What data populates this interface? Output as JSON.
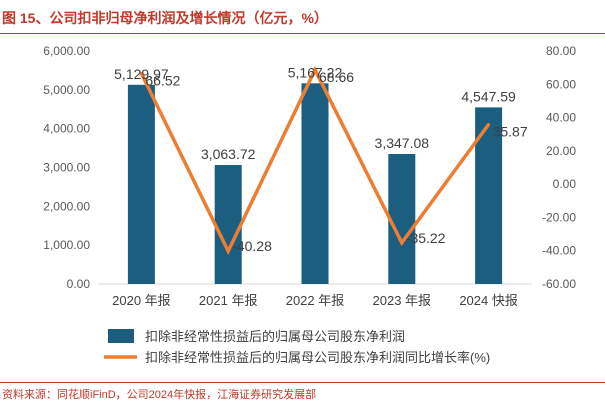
{
  "figure": {
    "title": "图 15、公司扣非归母净利润及增长情况（亿元，%）",
    "source": "资料来源：同花顺iFinD，公司2024年快报，江海证券研究发展部"
  },
  "colors": {
    "bar": "#1b5e7f",
    "line": "#ed7d31",
    "title": "#c0392b",
    "axis_text": "#595959",
    "axis_line": "#d9d9d9"
  },
  "chart_data": {
    "type": "bar",
    "categories": [
      "2020 年报",
      "2021 年报",
      "2022 年报",
      "2023 年报",
      "2024 快报"
    ],
    "series": [
      {
        "name": "扣除非经常性损益后的归属母公司股东净利润",
        "type": "bar",
        "axis": "left",
        "values": [
          5129.97,
          3063.72,
          5167.22,
          3347.08,
          4547.59
        ],
        "labels": [
          "5,129.97",
          "3,063.72",
          "5,167.22",
          "3,347.08",
          "4,547.59"
        ]
      },
      {
        "name": "扣除非经常性损益后的归属母公司股东净利润同比增长率(%)",
        "type": "line",
        "axis": "right",
        "values": [
          66.52,
          -40.28,
          68.66,
          -35.22,
          35.87
        ],
        "labels": [
          "66.52",
          "-40.28",
          "68.66",
          "-35.22",
          "35.87"
        ]
      }
    ],
    "y_left": {
      "ylim": [
        0,
        6000
      ],
      "ticks": [
        0,
        1000,
        2000,
        3000,
        4000,
        5000,
        6000
      ],
      "tick_labels": [
        "0.00",
        "1,000.00",
        "2,000.00",
        "3,000.00",
        "4,000.00",
        "5,000.00",
        "6,000.00"
      ]
    },
    "y_right": {
      "ylim": [
        -60,
        80
      ],
      "ticks": [
        -60,
        -40,
        -20,
        0,
        20,
        40,
        60,
        80
      ],
      "tick_labels": [
        "-60.00",
        "-40.00",
        "-20.00",
        "0.00",
        "20.00",
        "40.00",
        "60.00",
        "80.00"
      ]
    },
    "grid": false,
    "legend_position": "bottom"
  }
}
